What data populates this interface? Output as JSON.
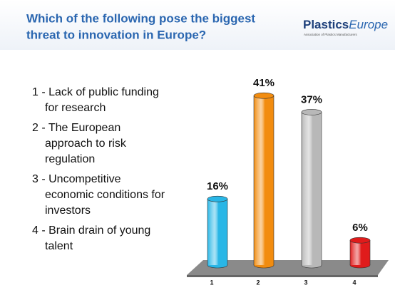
{
  "header": {
    "logo_main": "Plastics",
    "logo_accent": "Europe",
    "logo_tagline": "Association of Plastics Manufacturers"
  },
  "chart_data": {
    "type": "bar",
    "title": [
      "Which of the following pose the biggest",
      "threat to innovation in Europe?"
    ],
    "legend": [
      [
        "1 - Lack of public funding",
        "for research"
      ],
      [
        "2 - The European",
        "approach to risk",
        "regulation"
      ],
      [
        "3 - Uncompetitive",
        "economic conditions for",
        "investors"
      ],
      [
        "4 - Brain drain of young",
        "talent"
      ]
    ],
    "categories": [
      "1",
      "2",
      "3",
      "4"
    ],
    "values": [
      16,
      41,
      37,
      6
    ],
    "value_labels": [
      "16%",
      "41%",
      "37%",
      "6%"
    ],
    "colors": [
      "#29b6e6",
      "#f28c0f",
      "#b8b8b8",
      "#e01b1b"
    ]
  }
}
